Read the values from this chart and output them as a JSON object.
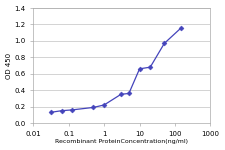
{
  "x": [
    0.031,
    0.063,
    0.125,
    0.5,
    1,
    3,
    5,
    10,
    20,
    50,
    150
  ],
  "y": [
    0.13,
    0.15,
    0.16,
    0.19,
    0.22,
    0.35,
    0.36,
    0.66,
    0.68,
    0.97,
    1.16
  ],
  "xlabel": "Recombinant ProteinConcentration(ng/ml)",
  "ylabel": "OD 450",
  "xlim": [
    0.01,
    1000
  ],
  "ylim": [
    0,
    1.4
  ],
  "yticks": [
    0,
    0.2,
    0.4,
    0.6,
    0.8,
    1.0,
    1.2,
    1.4
  ],
  "xticks": [
    0.01,
    0.1,
    1,
    10,
    100,
    1000
  ],
  "xtick_labels": [
    "0.01",
    "0.1",
    "1",
    "10",
    "100",
    "1000"
  ],
  "line_color": "#4444bb",
  "marker": "D",
  "marker_size": 2.5,
  "line_width": 0.9,
  "fig_bg_color": "#ffffff",
  "plot_bg_color": "#ffffff",
  "grid_color": "#cccccc",
  "xlabel_fontsize": 4.5,
  "ylabel_fontsize": 5.0,
  "tick_fontsize": 5.0
}
